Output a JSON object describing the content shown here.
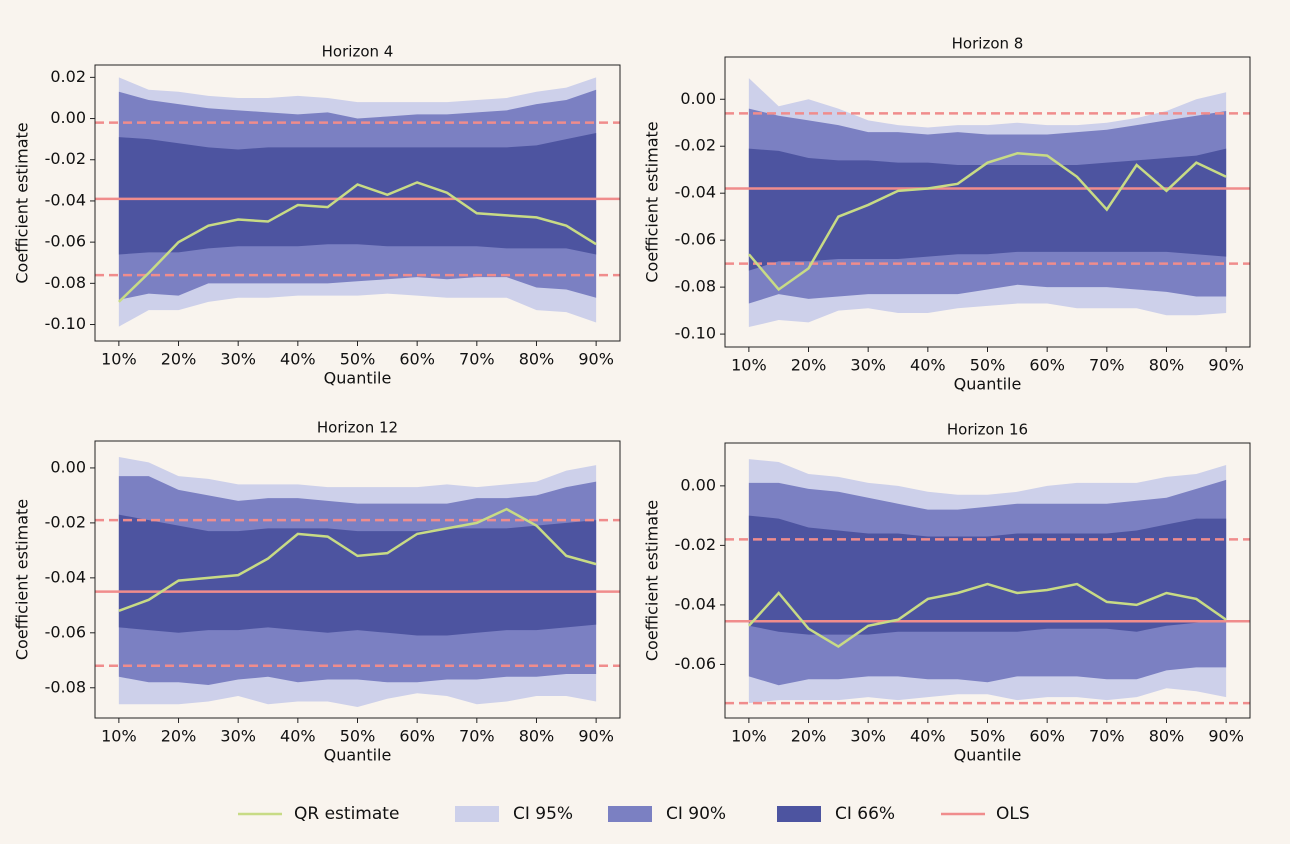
{
  "chart_data": [
    {
      "type": "fan",
      "title": "Horizon 4",
      "x_label": "Quantile",
      "y_label": "Coefficient estimate",
      "x": [
        10,
        15,
        20,
        25,
        30,
        35,
        40,
        45,
        50,
        55,
        60,
        65,
        70,
        75,
        80,
        85,
        90
      ],
      "xlim": [
        6,
        94
      ],
      "xticks": [
        {
          "value": 10,
          "label": "10%"
        },
        {
          "value": 20,
          "label": "20%"
        },
        {
          "value": 30,
          "label": "30%"
        },
        {
          "value": 40,
          "label": "40%"
        },
        {
          "value": 50,
          "label": "50%"
        },
        {
          "value": 60,
          "label": "60%"
        },
        {
          "value": 70,
          "label": "70%"
        },
        {
          "value": 80,
          "label": "80%"
        },
        {
          "value": 90,
          "label": "90%"
        }
      ],
      "ylim": [
        -0.108,
        0.026
      ],
      "yticks": [
        0.02,
        {
          "value": 0,
          "label": "0.00"
        },
        -0.02,
        -0.04,
        -0.06,
        -0.08,
        {
          "value": -0.1,
          "label": "-0.10"
        }
      ],
      "bands": [
        {
          "name": "CI 95%",
          "color": "#cdd0ea",
          "upper": [
            0.02,
            0.014,
            0.013,
            0.011,
            0.01,
            0.01,
            0.011,
            0.01,
            0.008,
            0.008,
            0.008,
            0.008,
            0.009,
            0.01,
            0.013,
            0.015,
            0.02
          ],
          "lower": [
            -0.101,
            -0.093,
            -0.093,
            -0.089,
            -0.087,
            -0.087,
            -0.086,
            -0.086,
            -0.086,
            -0.085,
            -0.086,
            -0.087,
            -0.087,
            -0.087,
            -0.093,
            -0.094,
            -0.099
          ]
        },
        {
          "name": "CI 90%",
          "color": "#7b80c2",
          "upper": [
            0.013,
            0.009,
            0.007,
            0.005,
            0.004,
            0.003,
            0.002,
            0.003,
            0.0,
            0.001,
            0.002,
            0.002,
            0.003,
            0.004,
            0.007,
            0.009,
            0.014
          ],
          "lower": [
            -0.088,
            -0.085,
            -0.086,
            -0.08,
            -0.08,
            -0.08,
            -0.08,
            -0.08,
            -0.079,
            -0.078,
            -0.077,
            -0.078,
            -0.077,
            -0.077,
            -0.082,
            -0.083,
            -0.087
          ]
        },
        {
          "name": "CI 66%",
          "color": "#4d54a0",
          "upper": [
            -0.009,
            -0.01,
            -0.012,
            -0.014,
            -0.015,
            -0.014,
            -0.014,
            -0.014,
            -0.014,
            -0.014,
            -0.014,
            -0.014,
            -0.014,
            -0.014,
            -0.013,
            -0.01,
            -0.007
          ],
          "lower": [
            -0.066,
            -0.065,
            -0.065,
            -0.063,
            -0.062,
            -0.062,
            -0.062,
            -0.061,
            -0.061,
            -0.062,
            -0.062,
            -0.062,
            -0.062,
            -0.063,
            -0.063,
            -0.063,
            -0.066
          ]
        }
      ],
      "series": [
        {
          "name": "QR estimate",
          "color": "#c8db85",
          "values": [
            -0.089,
            -0.075,
            -0.06,
            -0.052,
            -0.049,
            -0.05,
            -0.042,
            -0.043,
            -0.032,
            -0.037,
            -0.031,
            -0.036,
            -0.046,
            -0.047,
            -0.048,
            -0.052,
            -0.061
          ]
        }
      ],
      "ols": {
        "name": "OLS",
        "color": "#f08c8c",
        "value": -0.039,
        "lower": -0.076,
        "upper": -0.002
      }
    },
    {
      "type": "fan",
      "title": "Horizon 8",
      "x_label": "Quantile",
      "y_label": "Coefficient estimate",
      "x": [
        10,
        15,
        20,
        25,
        30,
        35,
        40,
        45,
        50,
        55,
        60,
        65,
        70,
        75,
        80,
        85,
        90
      ],
      "xlim": [
        6,
        94
      ],
      "xticks": [
        {
          "value": 10,
          "label": "10%"
        },
        {
          "value": 20,
          "label": "20%"
        },
        {
          "value": 30,
          "label": "30%"
        },
        {
          "value": 40,
          "label": "40%"
        },
        {
          "value": 50,
          "label": "50%"
        },
        {
          "value": 60,
          "label": "60%"
        },
        {
          "value": 70,
          "label": "70%"
        },
        {
          "value": 80,
          "label": "80%"
        },
        {
          "value": 90,
          "label": "90%"
        }
      ],
      "ylim": [
        -0.1055,
        0.018
      ],
      "yticks": [
        {
          "value": 0,
          "label": "0.00"
        },
        -0.02,
        -0.04,
        -0.06,
        -0.08,
        {
          "value": -0.1,
          "label": "-0.10"
        }
      ],
      "bands": [
        {
          "name": "CI 95%",
          "color": "#cdd0ea",
          "upper": [
            0.009,
            -0.003,
            0.0,
            -0.004,
            -0.009,
            -0.011,
            -0.012,
            -0.011,
            -0.011,
            -0.01,
            -0.011,
            -0.011,
            -0.01,
            -0.008,
            -0.005,
            0.0,
            0.003
          ],
          "lower": [
            -0.097,
            -0.094,
            -0.095,
            -0.09,
            -0.089,
            -0.091,
            -0.091,
            -0.089,
            -0.088,
            -0.087,
            -0.087,
            -0.089,
            -0.089,
            -0.089,
            -0.092,
            -0.092,
            -0.091
          ]
        },
        {
          "name": "CI 90%",
          "color": "#7b80c2",
          "upper": [
            -0.004,
            -0.007,
            -0.009,
            -0.011,
            -0.014,
            -0.014,
            -0.015,
            -0.014,
            -0.015,
            -0.015,
            -0.015,
            -0.014,
            -0.013,
            -0.011,
            -0.009,
            -0.007,
            -0.005
          ],
          "lower": [
            -0.087,
            -0.083,
            -0.085,
            -0.084,
            -0.083,
            -0.083,
            -0.083,
            -0.083,
            -0.081,
            -0.079,
            -0.08,
            -0.08,
            -0.08,
            -0.081,
            -0.082,
            -0.084,
            -0.084
          ]
        },
        {
          "name": "CI 66%",
          "color": "#4d54a0",
          "upper": [
            -0.021,
            -0.022,
            -0.025,
            -0.026,
            -0.026,
            -0.027,
            -0.027,
            -0.028,
            -0.028,
            -0.028,
            -0.028,
            -0.028,
            -0.027,
            -0.026,
            -0.025,
            -0.024,
            -0.021
          ],
          "lower": [
            -0.073,
            -0.069,
            -0.069,
            -0.068,
            -0.068,
            -0.068,
            -0.067,
            -0.066,
            -0.066,
            -0.065,
            -0.065,
            -0.065,
            -0.065,
            -0.065,
            -0.065,
            -0.066,
            -0.067
          ]
        }
      ],
      "series": [
        {
          "name": "QR estimate",
          "color": "#c8db85",
          "values": [
            -0.066,
            -0.081,
            -0.072,
            -0.05,
            -0.045,
            -0.039,
            -0.038,
            -0.036,
            -0.027,
            -0.023,
            -0.024,
            -0.033,
            -0.047,
            -0.028,
            -0.039,
            -0.027,
            -0.033
          ]
        }
      ],
      "ols": {
        "name": "OLS",
        "color": "#f08c8c",
        "value": -0.038,
        "lower": -0.07,
        "upper": -0.006
      }
    },
    {
      "type": "fan",
      "title": "Horizon 12",
      "x_label": "Quantile",
      "y_label": "Coefficient estimate",
      "x": [
        10,
        15,
        20,
        25,
        30,
        35,
        40,
        45,
        50,
        55,
        60,
        65,
        70,
        75,
        80,
        85,
        90
      ],
      "xlim": [
        6,
        94
      ],
      "xticks": [
        {
          "value": 10,
          "label": "10%"
        },
        {
          "value": 20,
          "label": "20%"
        },
        {
          "value": 30,
          "label": "30%"
        },
        {
          "value": 40,
          "label": "40%"
        },
        {
          "value": 50,
          "label": "50%"
        },
        {
          "value": 60,
          "label": "60%"
        },
        {
          "value": 70,
          "label": "70%"
        },
        {
          "value": 80,
          "label": "80%"
        },
        {
          "value": 90,
          "label": "90%"
        }
      ],
      "ylim": [
        -0.091,
        0.0098
      ],
      "yticks": [
        {
          "value": 0,
          "label": "0.00"
        },
        -0.02,
        -0.04,
        -0.06,
        -0.08
      ],
      "bands": [
        {
          "name": "CI 95%",
          "color": "#cdd0ea",
          "upper": [
            0.004,
            0.002,
            -0.003,
            -0.004,
            -0.006,
            -0.006,
            -0.006,
            -0.007,
            -0.007,
            -0.007,
            -0.007,
            -0.006,
            -0.007,
            -0.006,
            -0.005,
            -0.001,
            0.001
          ],
          "lower": [
            -0.086,
            -0.086,
            -0.086,
            -0.085,
            -0.083,
            -0.086,
            -0.085,
            -0.085,
            -0.087,
            -0.084,
            -0.082,
            -0.083,
            -0.086,
            -0.085,
            -0.083,
            -0.083,
            -0.085
          ]
        },
        {
          "name": "CI 90%",
          "color": "#7b80c2",
          "upper": [
            -0.003,
            -0.003,
            -0.008,
            -0.01,
            -0.012,
            -0.011,
            -0.011,
            -0.012,
            -0.013,
            -0.013,
            -0.013,
            -0.013,
            -0.011,
            -0.011,
            -0.01,
            -0.007,
            -0.005
          ],
          "lower": [
            -0.076,
            -0.078,
            -0.078,
            -0.079,
            -0.077,
            -0.076,
            -0.078,
            -0.077,
            -0.077,
            -0.078,
            -0.078,
            -0.077,
            -0.077,
            -0.076,
            -0.076,
            -0.075,
            -0.075
          ]
        },
        {
          "name": "CI 66%",
          "color": "#4d54a0",
          "upper": [
            -0.017,
            -0.019,
            -0.021,
            -0.023,
            -0.023,
            -0.022,
            -0.022,
            -0.022,
            -0.023,
            -0.023,
            -0.023,
            -0.022,
            -0.022,
            -0.022,
            -0.021,
            -0.02,
            -0.019
          ],
          "lower": [
            -0.058,
            -0.059,
            -0.06,
            -0.059,
            -0.059,
            -0.058,
            -0.059,
            -0.06,
            -0.059,
            -0.06,
            -0.061,
            -0.061,
            -0.06,
            -0.059,
            -0.059,
            -0.058,
            -0.057
          ]
        }
      ],
      "series": [
        {
          "name": "QR estimate",
          "color": "#c8db85",
          "values": [
            -0.052,
            -0.048,
            -0.041,
            -0.04,
            -0.039,
            -0.033,
            -0.024,
            -0.025,
            -0.032,
            -0.031,
            -0.024,
            -0.022,
            -0.02,
            -0.015,
            -0.021,
            -0.032,
            -0.035
          ]
        }
      ],
      "ols": {
        "name": "OLS",
        "color": "#f08c8c",
        "value": -0.045,
        "lower": -0.072,
        "upper": -0.019
      }
    },
    {
      "type": "fan",
      "title": "Horizon 16",
      "x_label": "Quantile",
      "y_label": "Coefficient estimate",
      "x": [
        10,
        15,
        20,
        25,
        30,
        35,
        40,
        45,
        50,
        55,
        60,
        65,
        70,
        75,
        80,
        85,
        90
      ],
      "xlim": [
        6,
        94
      ],
      "xticks": [
        {
          "value": 10,
          "label": "10%"
        },
        {
          "value": 20,
          "label": "20%"
        },
        {
          "value": 30,
          "label": "30%"
        },
        {
          "value": 40,
          "label": "40%"
        },
        {
          "value": 50,
          "label": "50%"
        },
        {
          "value": 60,
          "label": "60%"
        },
        {
          "value": 70,
          "label": "70%"
        },
        {
          "value": 80,
          "label": "80%"
        },
        {
          "value": 90,
          "label": "90%"
        }
      ],
      "ylim": [
        -0.078,
        0.0144
      ],
      "yticks": [
        {
          "value": 0,
          "label": "0.00"
        },
        -0.02,
        -0.04,
        -0.06
      ],
      "bands": [
        {
          "name": "CI 95%",
          "color": "#cdd0ea",
          "upper": [
            0.009,
            0.008,
            0.004,
            0.003,
            0.001,
            0.0,
            -0.002,
            -0.003,
            -0.003,
            -0.002,
            0.0,
            0.001,
            0.001,
            0.001,
            0.003,
            0.004,
            0.007
          ],
          "lower": [
            -0.073,
            -0.072,
            -0.072,
            -0.072,
            -0.071,
            -0.072,
            -0.071,
            -0.07,
            -0.07,
            -0.072,
            -0.071,
            -0.071,
            -0.072,
            -0.071,
            -0.068,
            -0.069,
            -0.071
          ]
        },
        {
          "name": "CI 90%",
          "color": "#7b80c2",
          "upper": [
            0.001,
            0.001,
            -0.001,
            -0.002,
            -0.004,
            -0.006,
            -0.008,
            -0.008,
            -0.007,
            -0.006,
            -0.006,
            -0.006,
            -0.006,
            -0.005,
            -0.004,
            -0.001,
            0.002
          ],
          "lower": [
            -0.064,
            -0.067,
            -0.065,
            -0.065,
            -0.064,
            -0.064,
            -0.065,
            -0.065,
            -0.066,
            -0.064,
            -0.064,
            -0.064,
            -0.065,
            -0.065,
            -0.062,
            -0.061,
            -0.061
          ]
        },
        {
          "name": "CI 66%",
          "color": "#4d54a0",
          "upper": [
            -0.01,
            -0.011,
            -0.014,
            -0.015,
            -0.016,
            -0.016,
            -0.017,
            -0.017,
            -0.017,
            -0.016,
            -0.016,
            -0.016,
            -0.016,
            -0.015,
            -0.013,
            -0.011,
            -0.011
          ],
          "lower": [
            -0.047,
            -0.049,
            -0.05,
            -0.05,
            -0.05,
            -0.049,
            -0.049,
            -0.049,
            -0.049,
            -0.049,
            -0.048,
            -0.048,
            -0.048,
            -0.049,
            -0.047,
            -0.046,
            -0.045
          ]
        }
      ],
      "series": [
        {
          "name": "QR estimate",
          "color": "#c8db85",
          "values": [
            -0.047,
            -0.036,
            -0.048,
            -0.054,
            -0.047,
            -0.045,
            -0.038,
            -0.036,
            -0.033,
            -0.036,
            -0.035,
            -0.033,
            -0.039,
            -0.04,
            -0.036,
            -0.038,
            -0.045
          ]
        }
      ],
      "ols": {
        "name": "OLS",
        "color": "#f08c8c",
        "value": -0.0455,
        "lower": -0.073,
        "upper": -0.018
      }
    }
  ]
}
